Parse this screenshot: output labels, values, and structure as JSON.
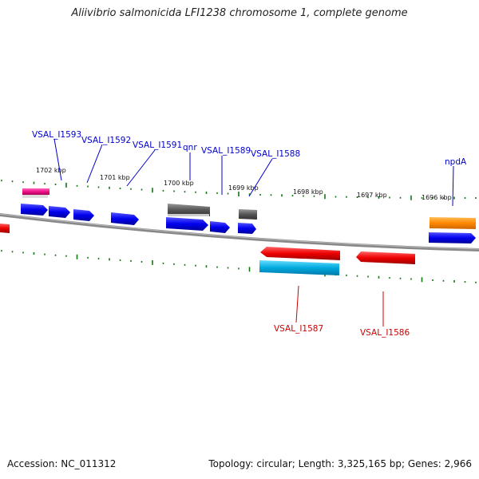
{
  "title": "Aliivibrio salmonicida LFI1238 chromosome 1, complete genome",
  "footer": {
    "accession": "Accession: NC_011312",
    "summary": "Topology: circular; Length: 3,325,165 bp; Genes: 2,966"
  },
  "ticks": [
    {
      "label": "1702 kbp"
    },
    {
      "label": "1701 kbp"
    },
    {
      "label": "1700 kbp"
    },
    {
      "label": "1699 kbp"
    },
    {
      "label": "1698 kbp"
    },
    {
      "label": "1697 kbp"
    },
    {
      "label": "1696 kbp"
    }
  ],
  "gene_labels": [
    {
      "text": "VSAL_I1593",
      "color": "#0000cc"
    },
    {
      "text": "VSAL_I1592",
      "color": "#0000cc"
    },
    {
      "text": "VSAL_I1591",
      "color": "#0000cc"
    },
    {
      "text": "qnr",
      "color": "#0000cc"
    },
    {
      "text": "VSAL_I1589",
      "color": "#0000cc"
    },
    {
      "text": "VSAL_I1588",
      "color": "#0000cc"
    },
    {
      "text": "npdA",
      "color": "#0000cc"
    },
    {
      "text": "VSAL_I1587",
      "color": "#cc0000"
    },
    {
      "text": "VSAL_I1586",
      "color": "#cc0000"
    }
  ],
  "colors": {
    "forward_cds": "#0000ee",
    "reverse_cds": "#ee0000",
    "gene": "#555555",
    "rna": "#ee1188",
    "orange_feature": "#ff8800",
    "cyan_feature": "#00aadd",
    "gc_skew": "#117711",
    "backbone": "#888888"
  }
}
